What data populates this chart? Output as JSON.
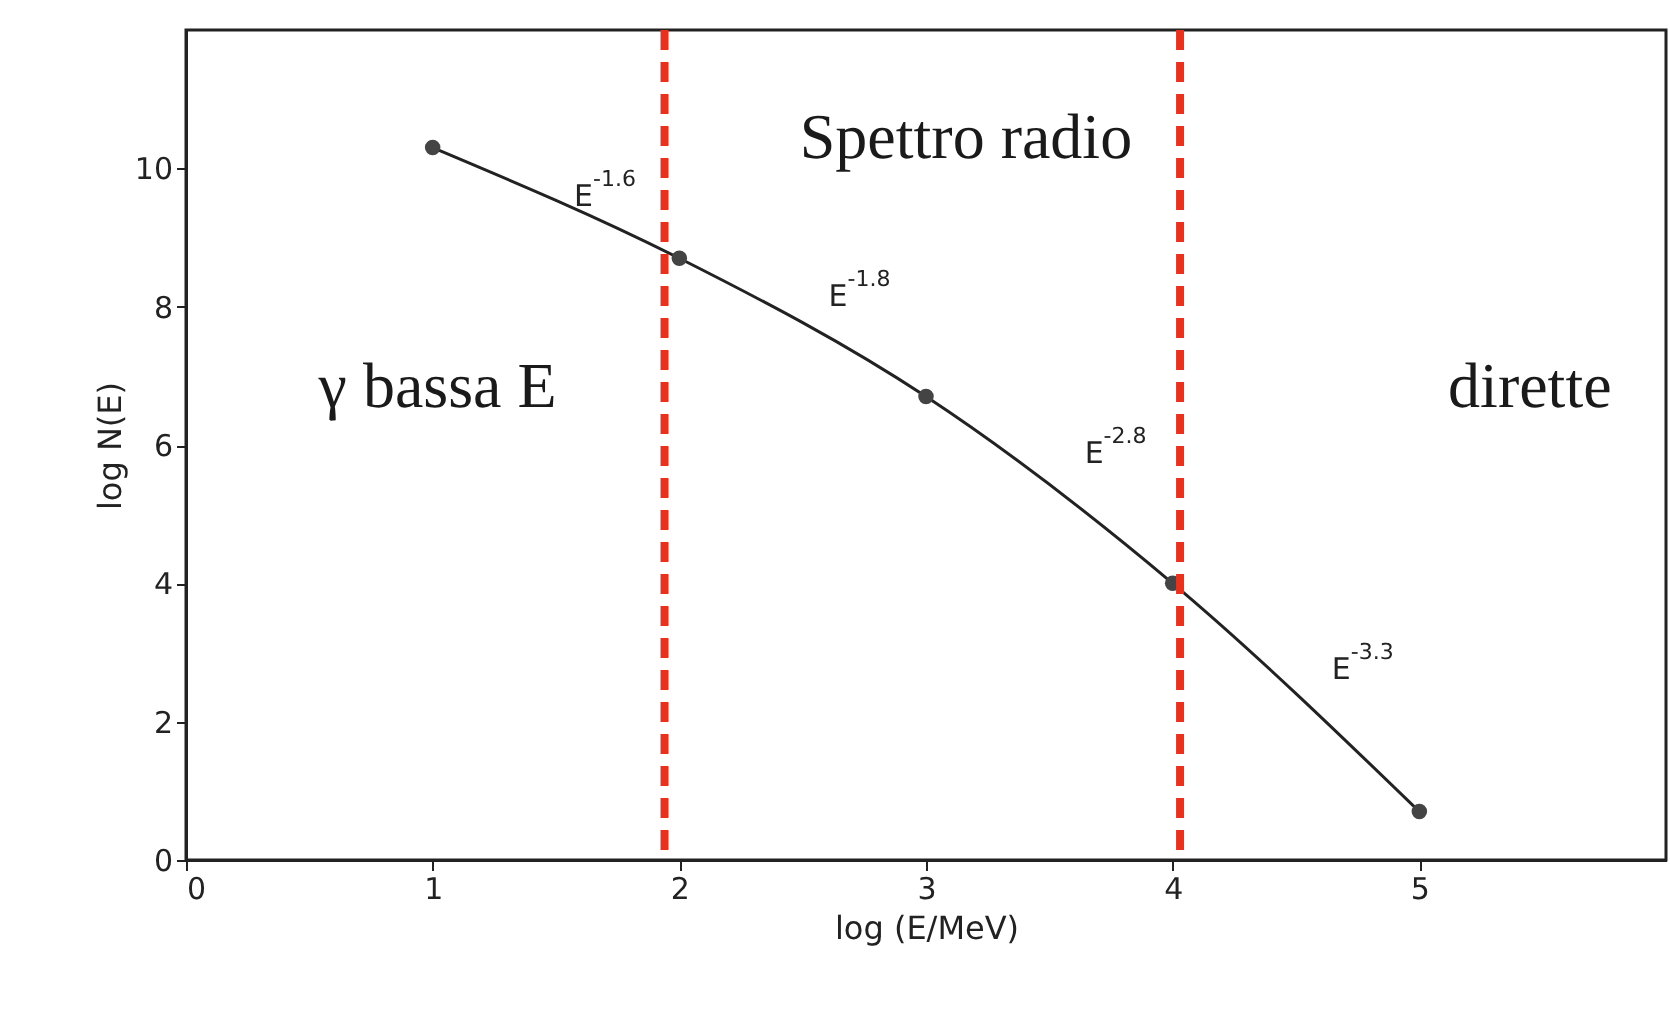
{
  "chart_data": {
    "type": "line",
    "xlabel": "log (E/MeV)",
    "ylabel": "log N(E)",
    "x": [
      1,
      2,
      3,
      4,
      5
    ],
    "series": [
      {
        "color": "#222222",
        "values": [
          10.3,
          8.7,
          6.7,
          4.0,
          0.7
        ]
      }
    ],
    "xlim": [
      0,
      6
    ],
    "ylim": [
      0,
      12
    ],
    "xticks": [
      0,
      1,
      2,
      3,
      4,
      5
    ],
    "yticks": [
      0,
      2,
      4,
      6,
      8,
      10
    ],
    "marker": "circle",
    "line_style": "solid",
    "grid": false,
    "ref_lines": [
      {
        "axis": "x",
        "value": 1.94,
        "color": "#e8321e",
        "line_style": "dashed"
      },
      {
        "axis": "x",
        "value": 4.03,
        "color": "#e8321e",
        "line_style": "dashed"
      }
    ],
    "annotations": [
      "E$^{-1.6}$",
      "E$^{-1.8}$",
      "E$^{-2.8}$",
      "E$^{-3.3}$",
      "Spettro radio",
      "γ bassa E",
      "dirette"
    ]
  }
}
